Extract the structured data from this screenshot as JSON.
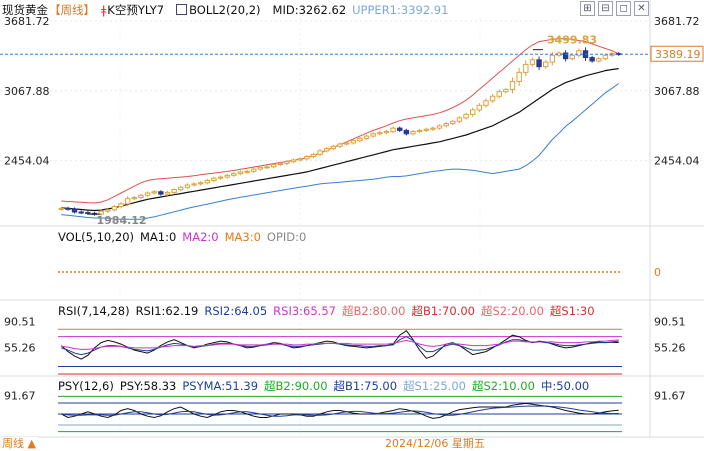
{
  "header": {
    "main": {
      "symbol": "现货黄金",
      "period": "【周线】",
      "kline_label": "K空预YLY7",
      "boll": "BOLL2(20,2)",
      "mid": "MID:3262.62",
      "upper": "UPPER1:3392.91"
    },
    "vol": {
      "name": "VOL(5,10,20)",
      "ma1": "MA1:0",
      "ma2": "MA2:0",
      "ma3": "MA3:0",
      "opid": "OPID:0"
    },
    "rsi": {
      "name": "RSI(7,14,28)",
      "rsi1": "RSI1:62.19",
      "rsi2": "RSI2:64.05",
      "rsi3": "RSI3:65.57",
      "b2": "超B2:80.00",
      "b1": "超B1:70.00",
      "s2": "超S2:20.00",
      "s1": "超S1:30"
    },
    "psy": {
      "name": "PSY(12,6)",
      "psy": "PSY:58.33",
      "psyma": "PSYMA:51.39",
      "b2": "超B2:90.00",
      "b1": "超B1:75.00",
      "s1": "超S1:25.00",
      "s2": "超S2:10.00",
      "mid": "中:50.00"
    }
  },
  "toolbar": [
    "⊞",
    "⊟",
    "◻",
    "✕"
  ],
  "footer": {
    "period": "周线 ▲",
    "date": "2024/12/06 星期五"
  },
  "colors": {
    "up": "#e0a23a",
    "down": "#2a3a8a",
    "upper": "#e05050",
    "mid": "#111111",
    "lower": "#3a7fd0",
    "accent": "#e07a1b",
    "magenta": "#cc33cc",
    "green": "#22aa22"
  },
  "chart_data": [
    {
      "type": "candlestick",
      "panel": "main",
      "y_ticks": [
        "3681.72",
        "3067.88",
        "2454.04"
      ],
      "y_tick_values": [
        3681.72,
        3067.88,
        2454.04
      ],
      "ylim": [
        1880,
        3690
      ],
      "current_price": "3389.19",
      "annotations": [
        {
          "text": "3499.83",
          "value": 3499.83
        },
        {
          "text": "1984.12",
          "value": 1984.12
        }
      ],
      "close": [
        2035,
        2029,
        2003,
        1998,
        1991,
        1985,
        2010,
        2022,
        2050,
        2075,
        2120,
        2130,
        2150,
        2170,
        2181,
        2160,
        2175,
        2200,
        2220,
        2240,
        2250,
        2260,
        2280,
        2300,
        2310,
        2325,
        2340,
        2355,
        2360,
        2380,
        2395,
        2400,
        2420,
        2430,
        2445,
        2460,
        2470,
        2490,
        2510,
        2540,
        2560,
        2580,
        2600,
        2610,
        2630,
        2650,
        2670,
        2690,
        2700,
        2710,
        2740,
        2720,
        2690,
        2710,
        2720,
        2730,
        2740,
        2760,
        2780,
        2800,
        2830,
        2860,
        2900,
        2940,
        2980,
        3020,
        3060,
        3080,
        3150,
        3230,
        3300,
        3340,
        3280,
        3320,
        3380,
        3400,
        3350,
        3380,
        3420,
        3360,
        3330,
        3350,
        3380,
        3395,
        3389
      ],
      "mid": [
        2040,
        2035,
        2030,
        2025,
        2020,
        2016,
        2020,
        2030,
        2040,
        2055,
        2070,
        2085,
        2100,
        2115,
        2125,
        2135,
        2145,
        2155,
        2165,
        2175,
        2185,
        2195,
        2205,
        2215,
        2225,
        2235,
        2245,
        2255,
        2265,
        2275,
        2285,
        2295,
        2305,
        2315,
        2325,
        2335,
        2345,
        2355,
        2370,
        2385,
        2400,
        2415,
        2430,
        2445,
        2460,
        2475,
        2490,
        2505,
        2520,
        2535,
        2550,
        2560,
        2570,
        2580,
        2590,
        2600,
        2610,
        2620,
        2635,
        2650,
        2665,
        2680,
        2700,
        2720,
        2740,
        2760,
        2790,
        2820,
        2850,
        2880,
        2920,
        2960,
        3000,
        3040,
        3080,
        3110,
        3140,
        3160,
        3180,
        3200,
        3215,
        3230,
        3245,
        3255,
        3262.62
      ],
      "upper": [
        2100,
        2095,
        2092,
        2088,
        2085,
        2082,
        2090,
        2110,
        2140,
        2170,
        2200,
        2230,
        2260,
        2280,
        2290,
        2295,
        2300,
        2305,
        2310,
        2315,
        2322,
        2330,
        2338,
        2345,
        2352,
        2360,
        2368,
        2378,
        2388,
        2398,
        2408,
        2418,
        2428,
        2438,
        2448,
        2458,
        2468,
        2480,
        2500,
        2520,
        2545,
        2570,
        2595,
        2620,
        2645,
        2670,
        2695,
        2720,
        2740,
        2760,
        2785,
        2805,
        2820,
        2830,
        2840,
        2850,
        2860,
        2875,
        2895,
        2920,
        2950,
        2985,
        3030,
        3080,
        3130,
        3180,
        3230,
        3280,
        3330,
        3380,
        3430,
        3470,
        3500,
        3510,
        3520,
        3525,
        3525,
        3520,
        3510,
        3500,
        3480,
        3460,
        3440,
        3420,
        3392.91
      ],
      "lower": [
        1980,
        1975,
        1968,
        1962,
        1955,
        1950,
        1950,
        1950,
        1940,
        1940,
        1940,
        1940,
        1940,
        1950,
        1960,
        1975,
        1990,
        2005,
        2020,
        2035,
        2048,
        2060,
        2072,
        2085,
        2098,
        2110,
        2122,
        2132,
        2142,
        2152,
        2162,
        2172,
        2182,
        2192,
        2202,
        2212,
        2222,
        2230,
        2240,
        2250,
        2255,
        2260,
        2265,
        2270,
        2275,
        2280,
        2285,
        2290,
        2300,
        2310,
        2315,
        2315,
        2320,
        2330,
        2340,
        2350,
        2360,
        2365,
        2375,
        2380,
        2380,
        2375,
        2370,
        2360,
        2350,
        2340,
        2350,
        2360,
        2370,
        2380,
        2410,
        2450,
        2500,
        2570,
        2640,
        2695,
        2755,
        2800,
        2850,
        2900,
        2950,
        3000,
        3050,
        3090,
        3132
      ]
    },
    {
      "type": "bar",
      "panel": "volume",
      "y_ticks": [
        "0"
      ],
      "values": [
        0
      ],
      "series": [
        {
          "name": "MA1",
          "values": [
            0
          ]
        },
        {
          "name": "MA2",
          "values": [
            0
          ]
        },
        {
          "name": "MA3",
          "values": [
            0
          ]
        },
        {
          "name": "OPID",
          "values": [
            0
          ]
        }
      ]
    },
    {
      "type": "line",
      "panel": "rsi",
      "y_ticks": [
        "90.51",
        "55.26"
      ],
      "y_tick_values": [
        90.51,
        55.26
      ],
      "ylim": [
        0,
        100
      ],
      "reference_lines": [
        80,
        70,
        30,
        20
      ],
      "series": [
        {
          "name": "RSI1",
          "values": [
            58,
            50,
            44,
            40,
            45,
            55,
            62,
            65,
            63,
            60,
            56,
            52,
            50,
            48,
            52,
            58,
            63,
            66,
            62,
            58,
            55,
            57,
            60,
            62,
            64,
            63,
            60,
            58,
            55,
            56,
            58,
            60,
            62,
            61,
            58,
            55,
            56,
            58,
            60,
            62,
            64,
            63,
            60,
            58,
            57,
            56,
            55,
            56,
            57,
            58,
            60,
            72,
            78,
            66,
            52,
            41,
            44,
            52,
            60,
            62,
            58,
            52,
            46,
            48,
            50,
            55,
            60,
            66,
            72,
            70,
            65,
            62,
            64,
            63,
            60,
            57,
            55,
            56,
            58,
            60,
            62,
            63,
            62,
            62.5,
            62.19
          ]
        },
        {
          "name": "RSI2",
          "values": [
            55,
            52,
            48,
            46,
            48,
            52,
            56,
            58,
            58,
            57,
            55,
            53,
            52,
            51,
            53,
            56,
            59,
            61,
            60,
            58,
            56,
            57,
            58,
            60,
            61,
            61,
            60,
            58,
            57,
            57,
            58,
            59,
            60,
            60,
            58,
            57,
            57,
            58,
            59,
            60,
            61,
            61,
            60,
            59,
            58,
            58,
            57,
            57,
            58,
            58,
            59,
            66,
            70,
            65,
            57,
            50,
            50,
            54,
            58,
            60,
            58,
            55,
            52,
            52,
            53,
            56,
            59,
            63,
            66,
            66,
            64,
            62,
            63,
            62,
            61,
            59,
            58,
            58,
            59,
            60,
            61,
            62,
            62,
            63,
            64.05
          ]
        },
        {
          "name": "RSI3",
          "values": [
            57,
            56,
            54,
            53,
            53,
            54,
            56,
            57,
            57,
            57,
            56,
            55,
            55,
            55,
            55,
            56,
            57,
            58,
            58,
            58,
            57,
            58,
            58,
            59,
            60,
            60,
            60,
            59,
            59,
            59,
            59,
            60,
            60,
            60,
            60,
            59,
            59,
            60,
            60,
            61,
            61,
            61,
            61,
            61,
            60,
            60,
            60,
            60,
            60,
            60,
            61,
            63,
            65,
            63,
            60,
            58,
            57,
            58,
            60,
            61,
            60,
            59,
            58,
            58,
            58,
            59,
            60,
            62,
            64,
            64,
            63,
            63,
            63,
            63,
            63,
            62,
            62,
            62,
            62,
            63,
            63,
            64,
            64,
            65,
            65.57
          ]
        }
      ]
    },
    {
      "type": "line",
      "panel": "psy",
      "y_ticks": [
        "91.67"
      ],
      "y_tick_values": [
        91.67
      ],
      "ylim": [
        0,
        100
      ],
      "reference_lines": [
        90,
        75,
        50,
        25,
        10
      ],
      "series": [
        {
          "name": "PSY",
          "values": [
            50,
            42,
            45,
            50,
            55,
            50,
            45,
            42,
            48,
            58,
            62,
            58,
            50,
            45,
            42,
            46,
            55,
            62,
            66,
            58,
            50,
            45,
            42,
            48,
            55,
            58,
            58,
            55,
            50,
            45,
            42,
            42,
            46,
            50,
            50,
            50,
            48,
            45,
            45,
            50,
            55,
            58,
            58,
            55,
            52,
            50,
            50,
            50,
            52,
            55,
            58,
            62,
            60,
            56,
            52,
            45,
            40,
            42,
            48,
            55,
            60,
            62,
            64,
            66,
            66,
            66,
            66,
            66,
            70,
            72,
            74,
            72,
            70,
            68,
            66,
            62,
            58,
            55,
            52,
            50,
            50,
            52,
            55,
            57,
            58.33
          ]
        },
        {
          "name": "PSYMA",
          "values": [
            50,
            48,
            47,
            47,
            48,
            48,
            48,
            47,
            47,
            50,
            53,
            55,
            55,
            53,
            50,
            48,
            49,
            52,
            55,
            56,
            55,
            52,
            49,
            47,
            48,
            50,
            53,
            55,
            55,
            53,
            50,
            47,
            45,
            45,
            46,
            48,
            48,
            48,
            47,
            47,
            48,
            50,
            53,
            55,
            56,
            56,
            54,
            52,
            51,
            51,
            52,
            54,
            56,
            57,
            56,
            54,
            51,
            49,
            47,
            47,
            49,
            52,
            55,
            58,
            61,
            63,
            64,
            65,
            66,
            67,
            68,
            68,
            68,
            68,
            67,
            66,
            64,
            62,
            59,
            57,
            55,
            53,
            52,
            51,
            51.39
          ]
        }
      ]
    }
  ]
}
